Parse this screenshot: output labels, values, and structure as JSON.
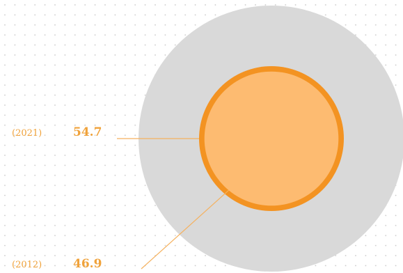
{
  "chart_data": {
    "type": "proportional-circles",
    "series": [
      {
        "year_label": "(2021)",
        "value": 54.7,
        "value_label": "54.7"
      },
      {
        "year_label": "(2012)",
        "value": 46.9,
        "value_label": "46.9"
      }
    ],
    "colors": {
      "background_circle": "#d9d9d9",
      "ring": "#f39322",
      "inner_circle": "#fdbb71",
      "leader_line": "#f5b15e",
      "dot_grid": "#c8c8c8",
      "label_text": "#f0a23a"
    }
  }
}
